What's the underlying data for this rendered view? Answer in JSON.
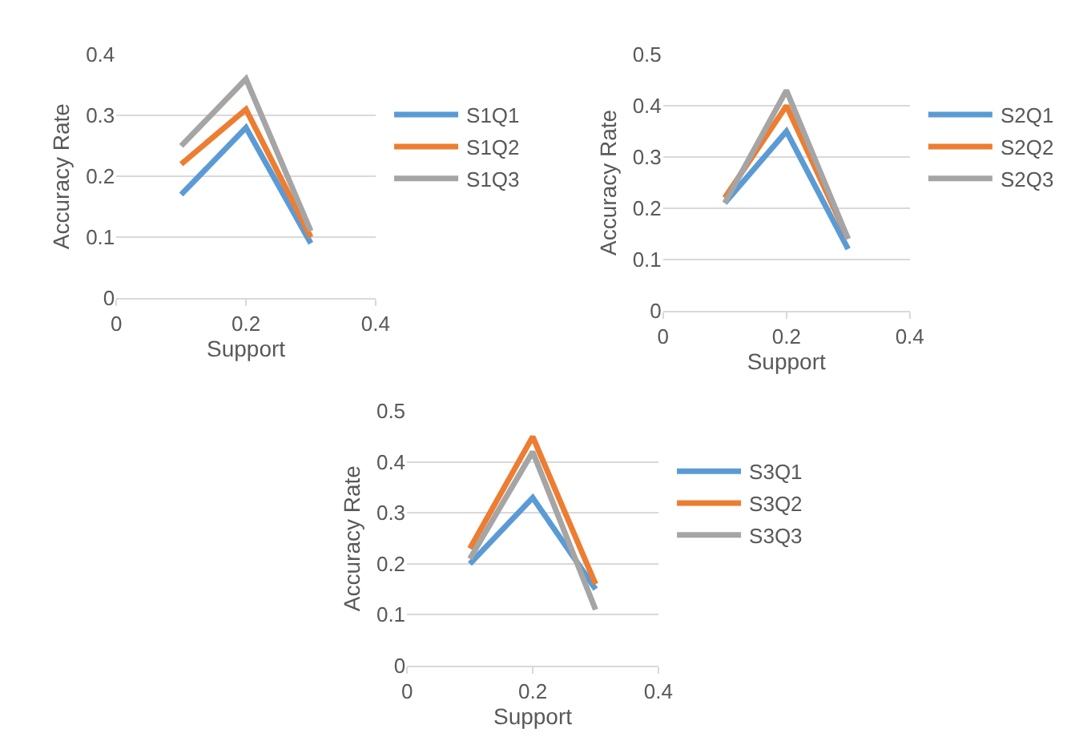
{
  "chart_data": [
    {
      "type": "line",
      "xlabel": "Support",
      "ylabel": "Accuracy Rate",
      "x": [
        0.1,
        0.2,
        0.3
      ],
      "xlim": [
        0,
        0.4
      ],
      "xticks": [
        0,
        0.2,
        0.4
      ],
      "ylim": [
        0,
        0.4
      ],
      "yticks": [
        0,
        0.1,
        0.2,
        0.3,
        0.4
      ],
      "grid": "y",
      "legend": "right",
      "marker": "none",
      "line_style": "solid",
      "series": [
        {
          "name": "S1Q1",
          "color": "#5b9bd5",
          "values": [
            0.17,
            0.28,
            0.09
          ]
        },
        {
          "name": "S1Q2",
          "color": "#ed7d31",
          "values": [
            0.22,
            0.31,
            0.1
          ]
        },
        {
          "name": "S1Q3",
          "color": "#a5a5a5",
          "values": [
            0.25,
            0.36,
            0.11
          ]
        }
      ]
    },
    {
      "type": "line",
      "xlabel": "Support",
      "ylabel": "Accuracy Rate",
      "x": [
        0.1,
        0.2,
        0.3
      ],
      "xlim": [
        0,
        0.4
      ],
      "xticks": [
        0,
        0.2,
        0.4
      ],
      "ylim": [
        0,
        0.5
      ],
      "yticks": [
        0,
        0.1,
        0.2,
        0.3,
        0.4,
        0.5
      ],
      "grid": "y",
      "legend": "right",
      "marker": "none",
      "line_style": "solid",
      "series": [
        {
          "name": "S2Q1",
          "color": "#5b9bd5",
          "values": [
            0.21,
            0.35,
            0.12
          ]
        },
        {
          "name": "S2Q2",
          "color": "#ed7d31",
          "values": [
            0.22,
            0.4,
            0.14
          ]
        },
        {
          "name": "S2Q3",
          "color": "#a5a5a5",
          "values": [
            0.21,
            0.43,
            0.14
          ]
        }
      ]
    },
    {
      "type": "line",
      "xlabel": "Support",
      "ylabel": "Accuracy Rate",
      "x": [
        0.1,
        0.2,
        0.3
      ],
      "xlim": [
        0,
        0.4
      ],
      "xticks": [
        0,
        0.2,
        0.4
      ],
      "ylim": [
        0,
        0.5
      ],
      "yticks": [
        0,
        0.1,
        0.2,
        0.3,
        0.4,
        0.5
      ],
      "grid": "y",
      "legend": "right",
      "marker": "none",
      "line_style": "solid",
      "series": [
        {
          "name": "S3Q1",
          "color": "#5b9bd5",
          "values": [
            0.2,
            0.33,
            0.15
          ]
        },
        {
          "name": "S3Q2",
          "color": "#ed7d31",
          "values": [
            0.23,
            0.45,
            0.16
          ]
        },
        {
          "name": "S3Q3",
          "color": "#a5a5a5",
          "values": [
            0.21,
            0.42,
            0.11
          ]
        }
      ]
    }
  ]
}
